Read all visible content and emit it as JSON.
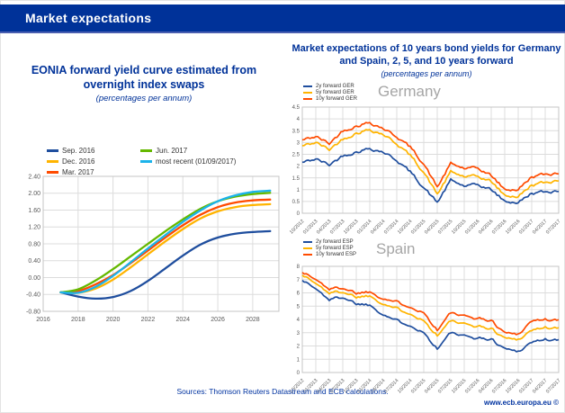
{
  "header": {
    "title": "Market expectations"
  },
  "colors": {
    "ecb_blue": "#003299",
    "header_accent": "#4a5fb0",
    "grid": "#dcdcdc",
    "axis_text": "#595959"
  },
  "right_block": {
    "title": "Market expectations of 10 years bond yields for Germany and Spain, 2, 5, and 10 years forward",
    "subtitle": "(percentages per annum)"
  },
  "footer": {
    "sources": "Sources: Thomson Reuters Datastream and ECB calculations.",
    "website": "www.ecb.europa.eu ©"
  },
  "chart_data": [
    {
      "id": "eonia",
      "type": "line",
      "title": "EONIA forward yield curve estimated from overnight index swaps",
      "subtitle": "(percentages per annum)",
      "x": [
        2017,
        2018,
        2019,
        2020,
        2021,
        2022,
        2023,
        2024,
        2025,
        2026,
        2027,
        2028,
        2029
      ],
      "xlim": [
        2016,
        2029.5
      ],
      "ylim": [
        -0.8,
        2.4
      ],
      "ytick_values": [
        2.4,
        2.0,
        1.6,
        1.2,
        0.8,
        0.4,
        0.0,
        -0.4,
        -0.8
      ],
      "ytick_labels": [
        "2.40",
        "2.00",
        "1.60",
        "1.20",
        "0.80",
        "0.40",
        "0.00",
        "-0.40",
        "-0.80"
      ],
      "xtick_values": [
        2016,
        2018,
        2020,
        2022,
        2024,
        2026,
        2028
      ],
      "xtick_labels": [
        "2016",
        "2018",
        "2020",
        "2022",
        "2024",
        "2026",
        "2028"
      ],
      "grid": true,
      "legend_position": "top-left",
      "legend_columns": [
        3,
        2
      ],
      "series": [
        {
          "name": "Sep. 2016",
          "color": "#1F4E9E",
          "values": [
            -0.35,
            -0.45,
            -0.5,
            -0.46,
            -0.32,
            -0.08,
            0.22,
            0.52,
            0.78,
            0.95,
            1.04,
            1.08,
            1.1
          ]
        },
        {
          "name": "Dec. 2016",
          "color": "#FFB400",
          "values": [
            -0.35,
            -0.36,
            -0.26,
            -0.05,
            0.24,
            0.55,
            0.86,
            1.15,
            1.4,
            1.57,
            1.67,
            1.72,
            1.74
          ]
        },
        {
          "name": "Mar. 2017",
          "color": "#FF4B00",
          "values": [
            -0.35,
            -0.32,
            -0.16,
            0.06,
            0.34,
            0.64,
            0.95,
            1.24,
            1.49,
            1.67,
            1.78,
            1.83,
            1.85
          ]
        },
        {
          "name": "Jun. 2017",
          "color": "#65B800",
          "values": [
            -0.35,
            -0.28,
            -0.07,
            0.2,
            0.5,
            0.8,
            1.1,
            1.38,
            1.63,
            1.81,
            1.92,
            1.98,
            2.01
          ]
        },
        {
          "name": "most recent (01/09/2017)",
          "color": "#1CB3EA",
          "values": [
            -0.35,
            -0.36,
            -0.22,
            0.04,
            0.36,
            0.69,
            1.01,
            1.32,
            1.59,
            1.81,
            1.95,
            2.03,
            2.06
          ]
        }
      ]
    },
    {
      "id": "germany",
      "type": "line",
      "heading": "Germany",
      "categories": [
        "10/2012",
        "01/2013",
        "04/2013",
        "07/2013",
        "10/2013",
        "01/2014",
        "04/2014",
        "07/2014",
        "10/2014",
        "01/2015",
        "04/2015",
        "07/2015",
        "10/2015",
        "01/2016",
        "04/2016",
        "07/2016",
        "10/2016",
        "01/2017",
        "04/2017",
        "07/2017"
      ],
      "ylim": [
        0,
        4.5
      ],
      "ytick_values": [
        4.5,
        4,
        3.5,
        3,
        2.5,
        2,
        1.5,
        1,
        0.5,
        0
      ],
      "ytick_labels": [
        "4.5",
        "4",
        "3.5",
        "3",
        "2.5",
        "2",
        "1.5",
        "1",
        "0.5",
        "0"
      ],
      "grid": true,
      "noise": 0.07,
      "seed": 42,
      "legend_columns": [
        3
      ],
      "series": [
        {
          "name": "2y forward GER",
          "color": "#1F4E9E",
          "values": [
            2.15,
            2.3,
            2.05,
            2.45,
            2.6,
            2.75,
            2.6,
            2.25,
            1.75,
            1.1,
            0.45,
            1.4,
            1.15,
            1.2,
            1.0,
            0.5,
            0.45,
            0.85,
            0.9,
            0.95
          ]
        },
        {
          "name": "5y forward GER",
          "color": "#FFB400",
          "values": [
            2.85,
            3.0,
            2.7,
            3.15,
            3.4,
            3.55,
            3.35,
            2.95,
            2.45,
            1.75,
            0.8,
            1.75,
            1.55,
            1.55,
            1.35,
            0.75,
            0.7,
            1.2,
            1.3,
            1.4
          ]
        },
        {
          "name": "10y forward GER",
          "color": "#FF4B00",
          "values": [
            3.1,
            3.25,
            2.95,
            3.5,
            3.7,
            3.85,
            3.6,
            3.25,
            2.8,
            2.1,
            1.1,
            2.1,
            1.9,
            1.9,
            1.6,
            1.0,
            1.0,
            1.55,
            1.65,
            1.7
          ]
        }
      ]
    },
    {
      "id": "spain",
      "type": "line",
      "heading": "Spain",
      "categories": [
        "10/2012",
        "01/2013",
        "04/2013",
        "07/2013",
        "10/2013",
        "01/2014",
        "04/2014",
        "07/2014",
        "10/2014",
        "01/2015",
        "04/2015",
        "07/2015",
        "10/2015",
        "01/2016",
        "04/2016",
        "07/2016",
        "10/2016",
        "01/2017",
        "04/2017",
        "07/2017"
      ],
      "ylim": [
        0,
        8
      ],
      "ytick_values": [
        8,
        7,
        6,
        5,
        4,
        3,
        2,
        1,
        0
      ],
      "ytick_labels": [
        "8",
        "7",
        "6",
        "5",
        "4",
        "3",
        "2",
        "1",
        "0"
      ],
      "grid": true,
      "noise": 0.12,
      "seed": 1337,
      "legend_columns": [
        3
      ],
      "series": [
        {
          "name": "2y forward ESP",
          "color": "#1F4E9E",
          "values": [
            7.0,
            6.3,
            5.5,
            5.7,
            5.2,
            5.1,
            4.4,
            3.9,
            3.6,
            3.0,
            1.8,
            3.0,
            2.7,
            2.6,
            2.5,
            1.8,
            1.6,
            2.3,
            2.5,
            2.4
          ]
        },
        {
          "name": "5y forward ESP",
          "color": "#FFB400",
          "values": [
            7.4,
            6.7,
            6.0,
            6.1,
            5.7,
            5.8,
            5.2,
            4.8,
            4.5,
            3.9,
            2.8,
            3.9,
            3.6,
            3.5,
            3.3,
            2.6,
            2.5,
            3.2,
            3.4,
            3.3
          ]
        },
        {
          "name": "10y forward ESP",
          "color": "#FF4B00",
          "values": [
            7.6,
            7.0,
            6.3,
            6.4,
            6.0,
            6.1,
            5.6,
            5.3,
            5.0,
            4.5,
            3.2,
            4.5,
            4.2,
            4.1,
            3.9,
            3.0,
            2.9,
            3.9,
            4.0,
            3.9
          ]
        }
      ]
    }
  ]
}
